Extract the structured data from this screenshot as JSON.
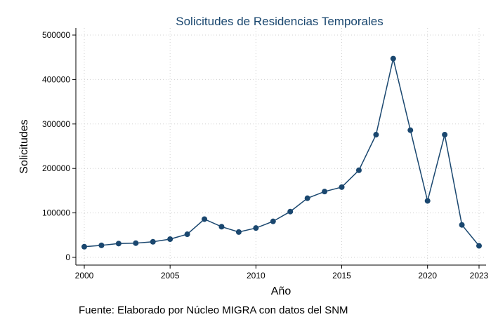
{
  "chart_data": {
    "type": "line",
    "title": "Solicitudes de Residencias Temporales",
    "xlabel": "Año",
    "ylabel": "Solicitudes",
    "note": "Fuente: Elaborado por Núcleo MIGRA con datos del SNM",
    "x": [
      2000,
      2001,
      2002,
      2003,
      2004,
      2005,
      2006,
      2007,
      2008,
      2009,
      2010,
      2011,
      2012,
      2013,
      2014,
      2015,
      2016,
      2017,
      2018,
      2019,
      2020,
      2021,
      2022,
      2023
    ],
    "series": [
      {
        "values": [
          24000,
          27000,
          31000,
          32000,
          35000,
          41000,
          52000,
          86000,
          69000,
          57000,
          66000,
          81000,
          103000,
          133000,
          148000,
          158000,
          196000,
          276000,
          447000,
          286000,
          127000,
          276000,
          73000,
          26000
        ],
        "color": "#1a476f"
      }
    ],
    "xticks": [
      "2000",
      "2005",
      "2010",
      "2015",
      "2020",
      "2023"
    ],
    "yticks": [
      "0",
      "100000",
      "200000",
      "300000",
      "400000",
      "500000"
    ],
    "xlim": [
      2000,
      2023
    ],
    "ylim": [
      0,
      500000
    ],
    "grid": true,
    "legend": "none"
  }
}
